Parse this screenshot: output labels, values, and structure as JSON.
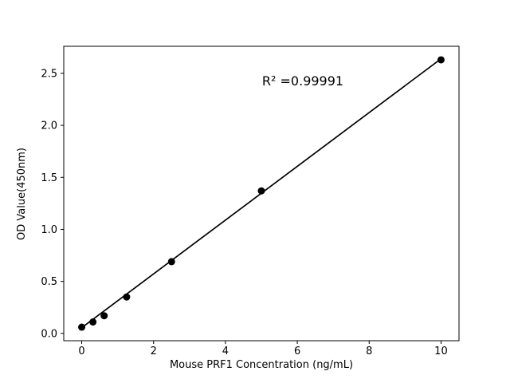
{
  "chart_data": {
    "type": "scatter",
    "title": "",
    "xlabel": "Mouse PRF1 Concentration (ng/mL)",
    "ylabel": "OD Value(450nm)",
    "annotation": "R² =0.99991",
    "x": [
      0,
      0.3125,
      0.625,
      1.25,
      2.5,
      5,
      10
    ],
    "y": [
      0.06,
      0.11,
      0.17,
      0.35,
      0.69,
      1.37,
      2.63
    ],
    "fit_line": {
      "x": [
        0,
        10
      ],
      "y": [
        0.055,
        2.64
      ]
    },
    "xlim": [
      -0.5,
      10.5
    ],
    "ylim": [
      -0.07,
      2.76
    ],
    "xticks": [
      0,
      2,
      4,
      6,
      8,
      10
    ],
    "xtick_labels": [
      "0",
      "2",
      "4",
      "6",
      "8",
      "10"
    ],
    "yticks": [
      0,
      0.5,
      1.0,
      1.5,
      2.0,
      2.5
    ],
    "ytick_labels": [
      "0.0",
      "0.5",
      "1.0",
      "1.5",
      "2.0",
      "2.5"
    ],
    "grid": false,
    "legend": null,
    "point_color": "#000000",
    "line_color": "#000000",
    "axis_color": "#000000",
    "background": "#ffffff"
  }
}
